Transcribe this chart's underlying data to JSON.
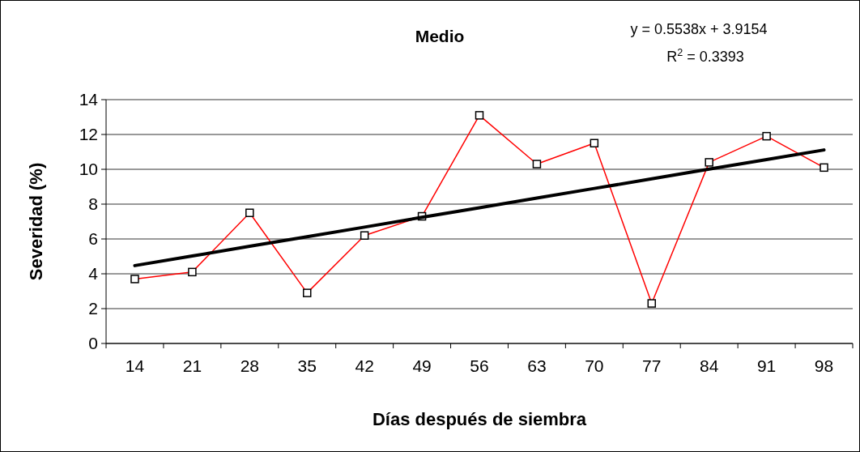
{
  "chart_data": {
    "type": "line",
    "title": "Medio",
    "xlabel": "Días después de siembra",
    "ylabel": "Severidad (%)",
    "categories": [
      "14",
      "21",
      "28",
      "35",
      "42",
      "49",
      "56",
      "63",
      "70",
      "77",
      "84",
      "91",
      "98"
    ],
    "series": [
      {
        "color": "#ff0000",
        "marker": "square",
        "values": [
          3.7,
          4.1,
          7.5,
          2.9,
          6.2,
          7.3,
          13.1,
          10.3,
          11.5,
          2.3,
          10.4,
          11.9,
          10.1
        ]
      },
      {
        "color": "#000000",
        "marker": "none",
        "values": [
          4.47,
          5.02,
          5.58,
          6.13,
          6.68,
          7.24,
          7.79,
          8.35,
          8.9,
          9.45,
          10.01,
          10.56,
          11.11
        ]
      }
    ],
    "ylim": [
      0,
      14
    ],
    "yticks": [
      0,
      2,
      4,
      6,
      8,
      10,
      12,
      14
    ],
    "grid": "y",
    "annotations": [
      "y = 0.5538x + 3.9154",
      "R$^{2}$ = 0.3393"
    ]
  }
}
